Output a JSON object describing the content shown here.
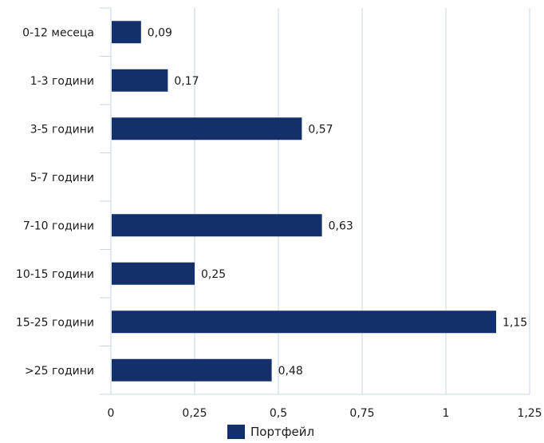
{
  "chart_data": {
    "type": "bar",
    "orientation": "horizontal",
    "categories": [
      "0-12 месеца",
      "1-3 години",
      "3-5 години",
      "5-7 години",
      "7-10 години",
      "10-15 години",
      "15-25 години",
      ">25 години"
    ],
    "series": [
      {
        "name": "Портфейл",
        "values": [
          0.09,
          0.17,
          0.57,
          null,
          0.63,
          0.25,
          1.15,
          0.48
        ],
        "value_labels": [
          "0,09",
          "0,17",
          "0,57",
          "",
          "0,63",
          "0,25",
          "1,15",
          "0,48"
        ]
      }
    ],
    "x_ticks": [
      "0",
      "0,25",
      "0,5",
      "0,75",
      "1",
      "1,25"
    ],
    "xlim": [
      0,
      1.25
    ],
    "grid": true,
    "legend_position": "bottom",
    "bar_color": "#14306b"
  }
}
